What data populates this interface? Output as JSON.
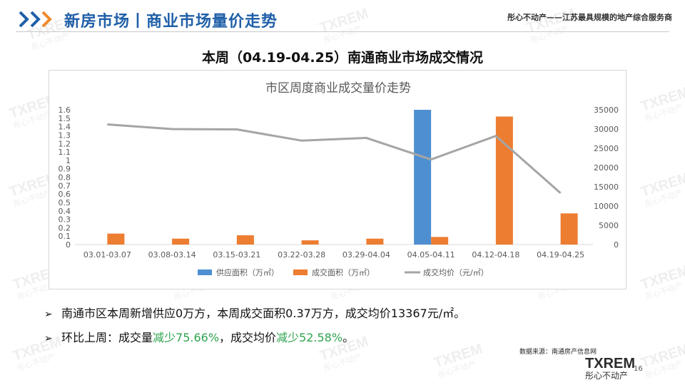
{
  "header": {
    "title": "新房市场丨商业市场量价走势",
    "slogan": "彤心不动产——江苏最具规模的地产综合服务商"
  },
  "subtitle": "本周（04.19-04.25）南通商业市场成交情况",
  "chart_data": {
    "type": "bar",
    "title": "市区周度商业成交量价走势",
    "categories": [
      "03.01-03.07",
      "03.08-03.14",
      "03.15-03.21",
      "03.22-03.28",
      "03.29-04.04",
      "04.05-04.11",
      "04.12-04.18",
      "04.19-04.25"
    ],
    "series": [
      {
        "name": "供应面积（万㎡）",
        "type": "bar",
        "axis": "left",
        "color": "#4e8fd1",
        "values": [
          0,
          0,
          0,
          0,
          0,
          1.6,
          0,
          0
        ]
      },
      {
        "name": "成交面积（万㎡）",
        "type": "bar",
        "axis": "left",
        "color": "#ed7d31",
        "values": [
          0.13,
          0.07,
          0.11,
          0.05,
          0.07,
          0.09,
          1.52,
          0.37
        ]
      },
      {
        "name": "成交均价（元/㎡）",
        "type": "line",
        "axis": "right",
        "color": "#a5a5a5",
        "values": [
          31200,
          30000,
          29900,
          27000,
          27700,
          22100,
          28200,
          13367
        ]
      }
    ],
    "y_left": {
      "min": 0,
      "max": 1.6,
      "ticks": [
        "0",
        "0.1",
        "0.2",
        "0.3",
        "0.4",
        "0.5",
        "0.6",
        "0.7",
        "0.8",
        "0.9",
        "1",
        "1.1",
        "1.2",
        "1.3",
        "1.4",
        "1.5",
        "1.6"
      ]
    },
    "y_right": {
      "min": 0,
      "max": 35000,
      "ticks": [
        "0",
        "5000",
        "10000",
        "15000",
        "20000",
        "25000",
        "30000",
        "35000"
      ]
    },
    "grid": false,
    "legend": "bottom"
  },
  "bullets": {
    "line1": "南通市区本周新增供应0万方，本周成交面积0.37万方，成交均价13367元/㎡。",
    "line2_a": "环比上周：成交量",
    "line2_b": "减少75.66%",
    "line2_c": "，成交均价",
    "line2_d": "减少52.58%",
    "line2_e": "。"
  },
  "footer": {
    "source": "数据来源：南通房产信息网",
    "logo_mark": "TXREM",
    "logo_cn": "彤心不动产",
    "page": "16"
  },
  "watermark": {
    "mark": "TXREM",
    "cn": "彤心不动产"
  },
  "colors": {
    "brand_blue": "#1f5fa8",
    "accent_green": "#2fa44f"
  }
}
